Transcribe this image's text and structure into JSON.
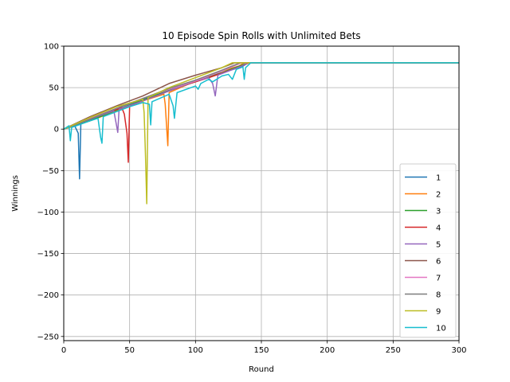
{
  "chart_data": {
    "type": "line",
    "title": "10 Episode Spin Rolls with Unlimited Bets",
    "xlabel": "Round",
    "ylabel": "Winnings",
    "xlim": [
      0,
      300
    ],
    "ylim": [
      -255,
      100
    ],
    "xticks": [
      0,
      50,
      100,
      150,
      200,
      250,
      300
    ],
    "yticks": [
      100,
      50,
      0,
      -50,
      -100,
      -150,
      -200,
      -250
    ],
    "grid": true,
    "legend_position": "lower-right",
    "series": [
      {
        "name": "1",
        "color": "#1f77b4",
        "points": [
          [
            0,
            0
          ],
          [
            8,
            5
          ],
          [
            11,
            -5
          ],
          [
            12,
            -60
          ],
          [
            13,
            8
          ],
          [
            25,
            14
          ],
          [
            40,
            25
          ],
          [
            60,
            36
          ],
          [
            80,
            47
          ],
          [
            100,
            58
          ],
          [
            120,
            68
          ],
          [
            135,
            75
          ],
          [
            140,
            80
          ],
          [
            300,
            80
          ]
        ]
      },
      {
        "name": "2",
        "color": "#ff7f0e",
        "points": [
          [
            0,
            0
          ],
          [
            20,
            10
          ],
          [
            40,
            22
          ],
          [
            60,
            34
          ],
          [
            76,
            42
          ],
          [
            77,
            30
          ],
          [
            78,
            5
          ],
          [
            79,
            -20
          ],
          [
            80,
            44
          ],
          [
            100,
            58
          ],
          [
            120,
            70
          ],
          [
            133,
            76
          ],
          [
            137,
            80
          ],
          [
            300,
            80
          ]
        ]
      },
      {
        "name": "3",
        "color": "#2ca02c",
        "points": [
          [
            0,
            0
          ],
          [
            20,
            10
          ],
          [
            40,
            23
          ],
          [
            60,
            35
          ],
          [
            80,
            47
          ],
          [
            100,
            57
          ],
          [
            120,
            68
          ],
          [
            140,
            80
          ],
          [
            300,
            80
          ]
        ]
      },
      {
        "name": "4",
        "color": "#d62728",
        "points": [
          [
            0,
            0
          ],
          [
            20,
            12
          ],
          [
            44,
            26
          ],
          [
            46,
            18
          ],
          [
            48,
            -5
          ],
          [
            49,
            -40
          ],
          [
            50,
            28
          ],
          [
            70,
            40
          ],
          [
            90,
            52
          ],
          [
            110,
            62
          ],
          [
            130,
            73
          ],
          [
            141,
            80
          ],
          [
            300,
            80
          ]
        ]
      },
      {
        "name": "5",
        "color": "#9467bd",
        "points": [
          [
            0,
            0
          ],
          [
            20,
            12
          ],
          [
            38,
            22
          ],
          [
            40,
            5
          ],
          [
            41,
            -4
          ],
          [
            42,
            24
          ],
          [
            60,
            34
          ],
          [
            80,
            46
          ],
          [
            100,
            58
          ],
          [
            110,
            62
          ],
          [
            113,
            55
          ],
          [
            115,
            40
          ],
          [
            117,
            65
          ],
          [
            135,
            76
          ],
          [
            140,
            80
          ],
          [
            300,
            80
          ]
        ]
      },
      {
        "name": "6",
        "color": "#8c564b",
        "points": [
          [
            0,
            0
          ],
          [
            20,
            15
          ],
          [
            40,
            28
          ],
          [
            60,
            40
          ],
          [
            80,
            55
          ],
          [
            100,
            65
          ],
          [
            120,
            74
          ],
          [
            130,
            80
          ],
          [
            300,
            80
          ]
        ]
      },
      {
        "name": "7",
        "color": "#e377c2",
        "points": [
          [
            0,
            0
          ],
          [
            20,
            13
          ],
          [
            40,
            25
          ],
          [
            60,
            37
          ],
          [
            80,
            48
          ],
          [
            100,
            58
          ],
          [
            120,
            70
          ],
          [
            135,
            80
          ],
          [
            300,
            80
          ]
        ]
      },
      {
        "name": "8",
        "color": "#7f7f7f",
        "points": [
          [
            0,
            0
          ],
          [
            20,
            12
          ],
          [
            40,
            25
          ],
          [
            60,
            37
          ],
          [
            80,
            49
          ],
          [
            100,
            59
          ],
          [
            120,
            71
          ],
          [
            134,
            80
          ],
          [
            300,
            80
          ]
        ]
      },
      {
        "name": "9",
        "color": "#bcbd22",
        "points": [
          [
            0,
            0
          ],
          [
            20,
            14
          ],
          [
            40,
            27
          ],
          [
            60,
            36
          ],
          [
            61,
            20
          ],
          [
            62,
            -30
          ],
          [
            63,
            -90
          ],
          [
            64,
            38
          ],
          [
            80,
            50
          ],
          [
            100,
            62
          ],
          [
            120,
            74
          ],
          [
            128,
            80
          ],
          [
            300,
            80
          ]
        ]
      },
      {
        "name": "10",
        "color": "#17becf",
        "points": [
          [
            0,
            0
          ],
          [
            4,
            4
          ],
          [
            5,
            -14
          ],
          [
            6,
            2
          ],
          [
            20,
            10
          ],
          [
            26,
            13
          ],
          [
            28,
            -10
          ],
          [
            29,
            -17
          ],
          [
            30,
            15
          ],
          [
            50,
            27
          ],
          [
            60,
            32
          ],
          [
            65,
            30
          ],
          [
            66,
            5
          ],
          [
            67,
            33
          ],
          [
            80,
            42
          ],
          [
            83,
            28
          ],
          [
            84,
            13
          ],
          [
            86,
            44
          ],
          [
            100,
            52
          ],
          [
            102,
            48
          ],
          [
            104,
            55
          ],
          [
            110,
            60
          ],
          [
            113,
            57
          ],
          [
            120,
            64
          ],
          [
            125,
            66
          ],
          [
            128,
            60
          ],
          [
            131,
            72
          ],
          [
            136,
            75
          ],
          [
            137,
            60
          ],
          [
            138,
            74
          ],
          [
            142,
            80
          ],
          [
            300,
            80
          ]
        ]
      }
    ]
  }
}
